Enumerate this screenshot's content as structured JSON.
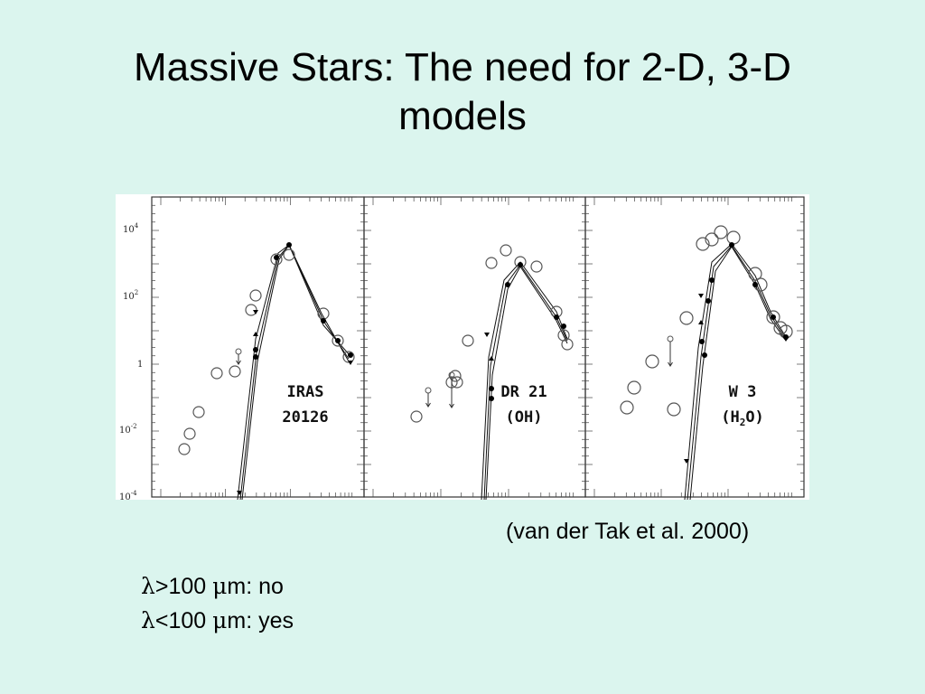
{
  "slide": {
    "title_line1": "Massive Stars:  The need for 2-D, 3-D",
    "title_line2": "models",
    "credit": "(van der Tak et al. 2000)",
    "bullets": [
      {
        "symbol": "λ",
        "text": ">100 ",
        "mu": "μ",
        "rest": "m: no"
      },
      {
        "symbol": "λ",
        "text": "<100 ",
        "mu": "μ",
        "rest": "m: yes"
      }
    ]
  },
  "figure": {
    "y_tick_labels": [
      {
        "base": "10",
        "exp": "4"
      },
      {
        "base": "10",
        "exp": "2"
      },
      {
        "base": "1",
        "exp": ""
      },
      {
        "base": "10",
        "exp": "-2"
      },
      {
        "base": "10",
        "exp": "-4"
      }
    ],
    "panels": [
      {
        "line1": "IRAS",
        "line2": "20126",
        "line2_sub": ""
      },
      {
        "line1": "DR 21",
        "line2": "(OH)",
        "line2_sub": ""
      },
      {
        "line1": "W 3",
        "line2": "(H",
        "line2_sub": "2",
        "line2_end": "O)"
      }
    ]
  }
}
